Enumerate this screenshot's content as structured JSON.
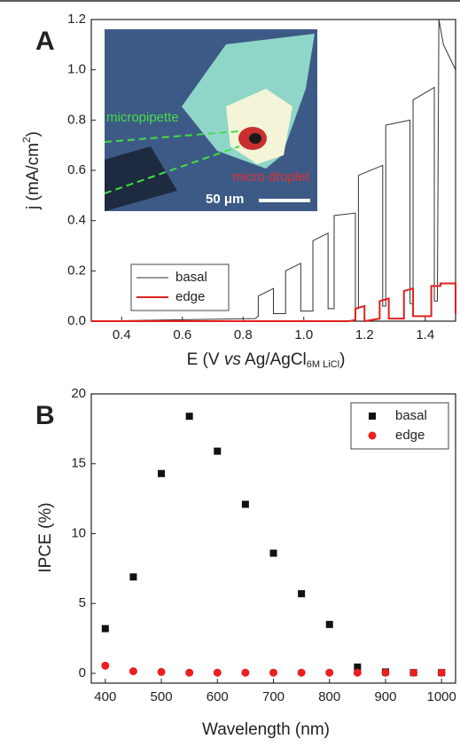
{
  "chart_data": [
    {
      "type": "line",
      "panel_label": "A",
      "xlabel": [
        "E (V ",
        "vs",
        " Ag/AgCl",
        "6M LiCl",
        ")"
      ],
      "ylabel": [
        "j (mA/cm",
        "2",
        ")"
      ],
      "xlim": [
        0.3,
        1.5
      ],
      "ylim": [
        0,
        1.2
      ],
      "xticks": [
        0.4,
        0.6,
        0.8,
        {
          "value": 1,
          "label": "1.0"
        },
        1.2,
        1.4
      ],
      "yticks": [
        {
          "value": 0,
          "label": "0.0"
        },
        0.2,
        0.4,
        0.6,
        0.8,
        {
          "value": 1,
          "label": "1.0"
        },
        1.2
      ],
      "inset_texts": [
        "micropipette",
        "micro droplet",
        "50 μm"
      ],
      "legend": "lower left",
      "series": [
        {
          "name": "basal",
          "color": "#333333",
          "x": [
            0.3,
            0.84,
            0.85,
            0.85,
            0.9,
            0.9,
            0.94,
            0.94,
            0.99,
            0.99,
            1.03,
            1.03,
            1.08,
            1.08,
            1.1,
            1.1,
            1.17,
            1.17,
            1.18,
            1.18,
            1.26,
            1.26,
            1.27,
            1.27,
            1.35,
            1.35,
            1.36,
            1.36,
            1.43,
            1.43,
            1.44,
            1.445,
            1.46,
            1.5,
            1.5
          ],
          "values": [
            0.0,
            0.01,
            0.02,
            0.1,
            0.13,
            0.03,
            0.03,
            0.2,
            0.23,
            0.04,
            0.04,
            0.32,
            0.35,
            0.05,
            0.05,
            0.42,
            0.43,
            0.05,
            0.05,
            0.58,
            0.62,
            0.06,
            0.06,
            0.78,
            0.8,
            0.07,
            0.07,
            0.88,
            0.93,
            0.08,
            0.08,
            1.2,
            1.1,
            1.0,
            0.12
          ]
        },
        {
          "name": "edge",
          "color": "#e02020",
          "x": [
            0.3,
            1.15,
            1.17,
            1.17,
            1.2,
            1.2,
            1.25,
            1.25,
            1.28,
            1.28,
            1.33,
            1.33,
            1.36,
            1.36,
            1.42,
            1.42,
            1.45,
            1.45,
            1.5,
            1.5
          ],
          "values": [
            0.0,
            0.0,
            0.005,
            0.05,
            0.06,
            0.0,
            0.01,
            0.08,
            0.09,
            0.01,
            0.01,
            0.12,
            0.13,
            0.02,
            0.02,
            0.14,
            0.14,
            0.15,
            0.15,
            0.03
          ]
        }
      ]
    },
    {
      "type": "scatter",
      "panel_label": "B",
      "xlabel": "Wavelength (nm)",
      "ylabel": "IPCE (%)",
      "xlim": [
        375,
        1025
      ],
      "ylim": [
        -0.7,
        20
      ],
      "xticks": [
        400,
        500,
        600,
        700,
        800,
        900,
        1000
      ],
      "yticks": [
        0,
        5,
        10,
        15,
        20
      ],
      "legend": "upper right",
      "x": [
        400,
        450,
        500,
        550,
        600,
        650,
        700,
        750,
        800,
        850,
        900,
        950,
        1000
      ],
      "series": [
        {
          "name": "basal",
          "color": "#111111",
          "marker": "square",
          "values": [
            3.2,
            6.9,
            14.3,
            18.4,
            15.9,
            12.1,
            8.6,
            5.7,
            3.5,
            0.45,
            0.1,
            0.05,
            0.05
          ]
        },
        {
          "name": "edge",
          "color": "#e82020",
          "marker": "circle",
          "values": [
            0.55,
            0.15,
            0.1,
            0.05,
            0.05,
            0.05,
            0.05,
            0.05,
            0.05,
            0.05,
            0.05,
            0.05,
            0.05
          ]
        }
      ]
    }
  ]
}
